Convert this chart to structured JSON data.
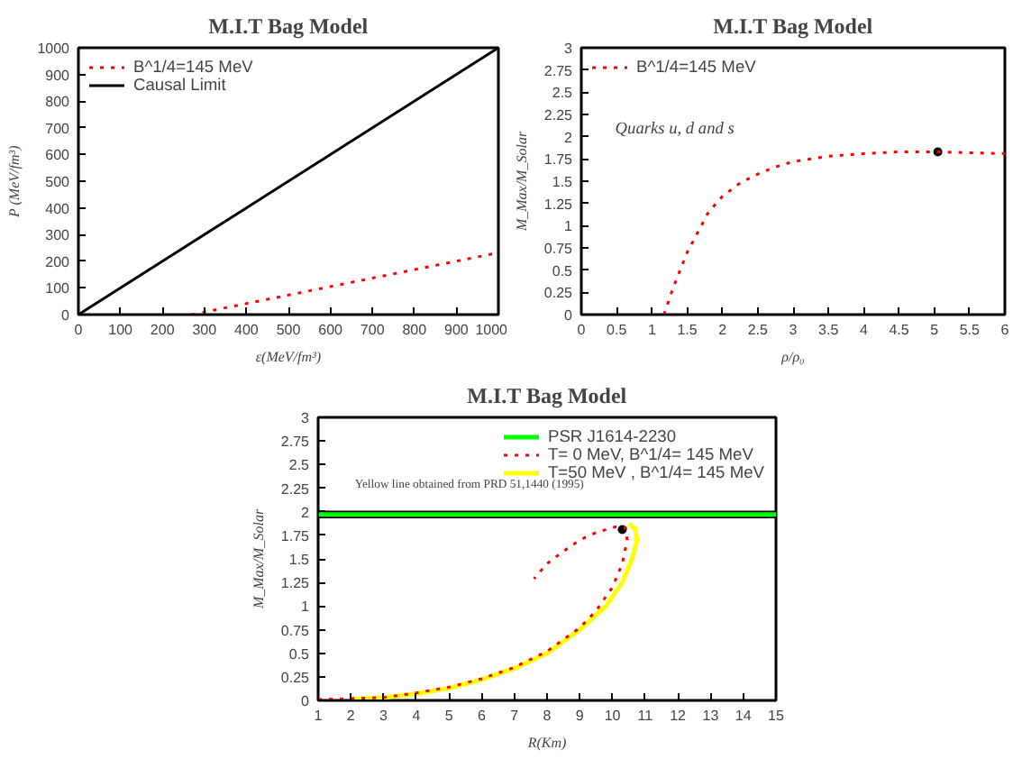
{
  "chart_data": [
    {
      "type": "line",
      "title": "M.I.T Bag Model",
      "xlabel": "ε(MeV/fm³)",
      "ylabel": "P (MeV/fm³)",
      "xlim": [
        0,
        1000
      ],
      "ylim": [
        0,
        1000
      ],
      "xticks": [
        0,
        100,
        200,
        300,
        400,
        500,
        600,
        700,
        800,
        900,
        1000
      ],
      "yticks": [
        0,
        100,
        200,
        300,
        400,
        500,
        600,
        700,
        800,
        900,
        1000
      ],
      "grid": false,
      "legend": "top left",
      "series": [
        {
          "name": "B^1/4=145 MeV",
          "color": "#ff0000",
          "line_style": "dotted",
          "x": [
            270,
            1000
          ],
          "values": [
            0,
            232
          ]
        },
        {
          "name": "Causal Limit",
          "color": "#000000",
          "line_style": "solid",
          "x": [
            0,
            1000
          ],
          "values": [
            0,
            1000
          ]
        }
      ]
    },
    {
      "type": "line",
      "title": "M.I.T Bag Model",
      "xlabel": "ρ/ρ₀",
      "ylabel": "M_Max/M_Solar",
      "xlim": [
        0,
        6
      ],
      "ylim": [
        0,
        3
      ],
      "xticks": [
        0,
        0.5,
        1,
        1.5,
        2,
        2.5,
        3,
        3.5,
        4,
        4.5,
        5,
        5.5,
        6
      ],
      "yticks": [
        0,
        0.25,
        0.5,
        0.75,
        1,
        1.25,
        1.5,
        1.75,
        2,
        2.25,
        2.5,
        2.75,
        3
      ],
      "grid": false,
      "legend": "top left",
      "annotations": [
        "Quarks u, d and s"
      ],
      "series": [
        {
          "name": "B^1/4=145 MeV",
          "color": "#ff0000",
          "line_style": "dotted",
          "x": [
            1.17,
            1.3,
            1.5,
            1.7,
            1.8,
            2.0,
            2.25,
            2.5,
            2.75,
            3.0,
            3.5,
            4.0,
            4.5,
            5.0,
            5.5,
            6.0
          ],
          "values": [
            0,
            0.3,
            0.7,
            1.0,
            1.15,
            1.33,
            1.48,
            1.58,
            1.66,
            1.72,
            1.78,
            1.81,
            1.83,
            1.83,
            1.82,
            1.81
          ]
        },
        {
          "type": "scatter",
          "color": "#000000",
          "marker": "circle",
          "x": [
            5.05
          ],
          "values": [
            1.83
          ]
        }
      ]
    },
    {
      "type": "line",
      "title": "M.I.T Bag Model",
      "xlabel": "R(Km)",
      "ylabel": "M_Max/M_Solar",
      "xlim": [
        1,
        15
      ],
      "ylim": [
        0,
        3
      ],
      "xticks": [
        1,
        2,
        3,
        4,
        5,
        6,
        7,
        8,
        9,
        10,
        11,
        12,
        13,
        14,
        15
      ],
      "yticks": [
        0,
        0.25,
        0.5,
        0.75,
        1,
        1.25,
        1.5,
        1.75,
        2,
        2.25,
        2.5,
        2.75,
        3
      ],
      "grid": false,
      "legend": "top right",
      "annotations": [
        "Yellow line obtained from PRD 51,1440 (1995)"
      ],
      "bands": [
        {
          "axis": "y",
          "from": 1.93,
          "to": 2.01,
          "color": "#000000"
        }
      ],
      "series": [
        {
          "name": "PSR J1614-2230",
          "color": "#00ff00",
          "line_style": "solid",
          "x": [
            1,
            15
          ],
          "values": [
            1.97,
            1.97
          ]
        },
        {
          "name": "T= 0 MeV, B^1/4= 145 MeV",
          "color": "#ff0000",
          "line_style": "dotted",
          "x": [
            1,
            2,
            3,
            4,
            5,
            6,
            7,
            8,
            9,
            9.5,
            10,
            10.3,
            10.45,
            10.4,
            10.1,
            9.5,
            9,
            8.5,
            8,
            7.6
          ],
          "values": [
            0.01,
            0.02,
            0.03,
            0.08,
            0.14,
            0.23,
            0.35,
            0.52,
            0.77,
            0.95,
            1.2,
            1.45,
            1.7,
            1.83,
            1.84,
            1.78,
            1.7,
            1.58,
            1.45,
            1.29
          ]
        },
        {
          "name": "T=50 MeV , B^1/4= 145 MeV",
          "color": "#ffff00",
          "line_style": "solid",
          "x": [
            2,
            3,
            4,
            5,
            6,
            7,
            8,
            9,
            9.8,
            10.3,
            10.6,
            10.75,
            10.7,
            10.5
          ],
          "values": [
            0.01,
            0.03,
            0.07,
            0.13,
            0.22,
            0.34,
            0.5,
            0.75,
            1.0,
            1.25,
            1.5,
            1.7,
            1.82,
            1.87
          ]
        },
        {
          "type": "scatter",
          "color": "#000000",
          "marker": "circle",
          "x": [
            10.3
          ],
          "values": [
            1.81
          ]
        }
      ]
    }
  ]
}
